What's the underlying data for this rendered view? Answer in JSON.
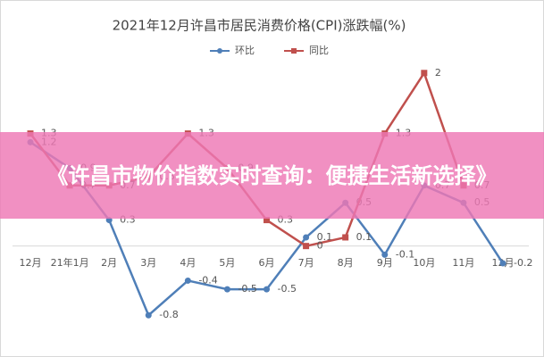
{
  "chart_data": {
    "type": "line",
    "title": "2021年12月许昌市居民消费价格(CPI)涨跌幅(%)",
    "categories": [
      "12月",
      "21年1月",
      "2月",
      "3月",
      "4月",
      "5月",
      "6月",
      "7月",
      "8月",
      "9月",
      "10月",
      "11月",
      "12月"
    ],
    "series": [
      {
        "name": "环比",
        "color": "#4f7fb8",
        "marker": "circle",
        "values": [
          1.2,
          0.9,
          0.3,
          -0.8,
          -0.4,
          -0.5,
          -0.5,
          0.1,
          0.5,
          -0.1,
          0.7,
          0.5,
          -0.2
        ]
      },
      {
        "name": "同比",
        "color": "#c0504d",
        "marker": "square",
        "values": [
          1.3,
          0.7,
          0.7,
          0.8,
          1.3,
          0.9,
          0.3,
          0.0,
          0.1,
          1.3,
          2.0,
          0.7,
          null
        ]
      }
    ],
    "ylim": [
      -1.2,
      2.4
    ],
    "grid": false,
    "legend": "top"
  },
  "banner": {
    "title": "《许昌市物价指数实时查询：便捷生活新选择》"
  }
}
